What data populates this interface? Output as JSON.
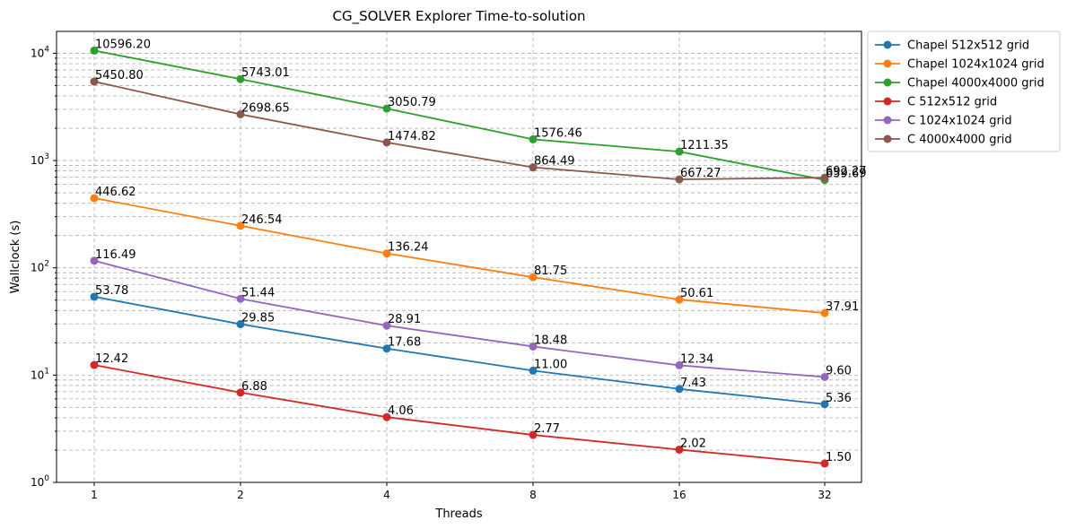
{
  "chart_data": {
    "type": "line",
    "title": "CG_SOLVER Explorer Time-to-solution",
    "xlabel": "Threads",
    "ylabel": "Wallclock (s)",
    "yscale": "log",
    "ylim": [
      1,
      16000
    ],
    "grid": true,
    "legend_position": "outside-top-right",
    "categories": [
      "1",
      "2",
      "4",
      "8",
      "16",
      "32"
    ],
    "y_ticks": [
      {
        "value": 1,
        "base": "10",
        "exp": "0"
      },
      {
        "value": 10,
        "base": "10",
        "exp": "1"
      },
      {
        "value": 100,
        "base": "10",
        "exp": "2"
      },
      {
        "value": 1000,
        "base": "10",
        "exp": "3"
      },
      {
        "value": 10000,
        "base": "10",
        "exp": "4"
      }
    ],
    "series": [
      {
        "name": "Chapel 512x512 grid",
        "color": "#1f77b4",
        "values": [
          53.78,
          29.85,
          17.68,
          11.0,
          7.43,
          5.36
        ],
        "labels": [
          "53.78",
          "29.85",
          "17.68",
          "11.00",
          "7.43",
          "5.36"
        ]
      },
      {
        "name": "Chapel 1024x1024 grid",
        "color": "#ff7f0e",
        "values": [
          446.62,
          246.54,
          136.24,
          81.75,
          50.61,
          37.91
        ],
        "labels": [
          "446.62",
          "246.54",
          "136.24",
          "81.75",
          "50.61",
          "37.91"
        ]
      },
      {
        "name": "Chapel 4000x4000 grid",
        "color": "#2ca02c",
        "values": [
          10596.2,
          5743.01,
          3050.79,
          1576.46,
          1211.35,
          659.69
        ],
        "labels": [
          "10596.20",
          "5743.01",
          "3050.79",
          "1576.46",
          "1211.35",
          "659.69"
        ]
      },
      {
        "name": "C 512x512 grid",
        "color": "#d62728",
        "values": [
          12.42,
          6.88,
          4.06,
          2.77,
          2.02,
          1.5
        ],
        "labels": [
          "12.42",
          "6.88",
          "4.06",
          "2.77",
          "2.02",
          "1.50"
        ]
      },
      {
        "name": "C 1024x1024 grid",
        "color": "#9467bd",
        "values": [
          116.49,
          51.44,
          28.91,
          18.48,
          12.34,
          9.6
        ],
        "labels": [
          "116.49",
          "51.44",
          "28.91",
          "18.48",
          "12.34",
          "9.60"
        ]
      },
      {
        "name": "C 4000x4000 grid",
        "color": "#8c564b",
        "values": [
          5450.8,
          2698.65,
          1474.82,
          864.49,
          667.27,
          692.27
        ],
        "labels": [
          "5450.80",
          "2698.65",
          "1474.82",
          "864.49",
          "667.27",
          "692.27"
        ]
      }
    ]
  }
}
